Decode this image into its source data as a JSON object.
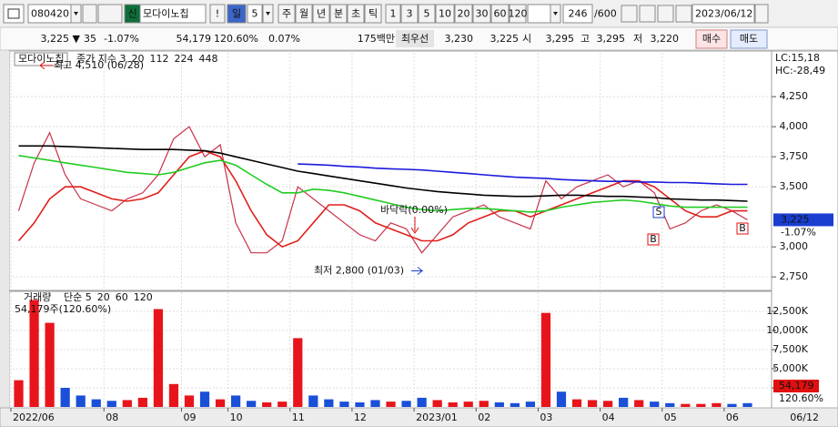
{
  "toolbar": {
    "code": "080420",
    "badge": "신",
    "name": "모다이노칩",
    "alert": "!",
    "period": "일",
    "period_n": "5",
    "periods": [
      "주",
      "월",
      "년",
      "분",
      "초",
      "틱"
    ],
    "intervals": [
      "1",
      "3",
      "5",
      "10",
      "20",
      "30",
      "60",
      "120"
    ],
    "count": "246",
    "max": "/600",
    "date": "2023/06/12"
  },
  "quote": {
    "price": "3,225 ▼",
    "change": "35",
    "change_pct": "-1.07%",
    "volume": "54,179",
    "volume_ratio": "120.60%",
    "turnover": "0.07%",
    "amount": "175백만",
    "best_label": "최우선",
    "ask": "3,230",
    "bid": "3,225",
    "open_label": "시",
    "open": "3,295",
    "high_label": "고",
    "high": "3,295",
    "low_label": "저",
    "low": "3,220",
    "buy": "매수",
    "sell": "매도"
  },
  "chart_data": [
    {
      "type": "line",
      "title": "모다이노칩",
      "series": [
        {
          "name": "종가 지수 3",
          "color": "#c8324a",
          "values": [
            3300,
            3700,
            3950,
            3600,
            3400,
            3350,
            3300,
            3400,
            3450,
            3600,
            3900,
            4000,
            3750,
            3850,
            3200,
            2950,
            2950,
            3050,
            3500,
            3400,
            3300,
            3200,
            3100,
            3050,
            3200,
            3150,
            2950,
            3100,
            3250,
            3300,
            3350,
            3250,
            3200,
            3150,
            3550,
            3400,
            3500,
            3550,
            3600,
            3500,
            3550,
            3450,
            3150,
            3200,
            3300,
            3350,
            3300,
            3225
          ]
        },
        {
          "name": "20",
          "color": "#e0201c",
          "values": [
            3050,
            3200,
            3400,
            3500,
            3500,
            3450,
            3400,
            3380,
            3400,
            3450,
            3600,
            3750,
            3800,
            3750,
            3550,
            3300,
            3100,
            3000,
            3050,
            3200,
            3350,
            3350,
            3300,
            3200,
            3150,
            3100,
            3050,
            3050,
            3100,
            3200,
            3250,
            3300,
            3300,
            3250,
            3300,
            3350,
            3400,
            3450,
            3500,
            3550,
            3550,
            3500,
            3400,
            3300,
            3250,
            3250,
            3300,
            3300
          ]
        },
        {
          "name": "112",
          "color": "#22cc22",
          "values": [
            3760,
            3740,
            3720,
            3700,
            3680,
            3660,
            3640,
            3620,
            3610,
            3600,
            3620,
            3660,
            3700,
            3720,
            3680,
            3600,
            3520,
            3450,
            3450,
            3480,
            3470,
            3450,
            3420,
            3390,
            3360,
            3330,
            3310,
            3300,
            3310,
            3320,
            3320,
            3310,
            3300,
            3290,
            3300,
            3330,
            3350,
            3370,
            3380,
            3390,
            3380,
            3360,
            3340,
            3330,
            3330,
            3330,
            3330,
            3330
          ]
        },
        {
          "name": "224",
          "color": "#000000",
          "values": [
            3840,
            3840,
            3840,
            3835,
            3830,
            3825,
            3820,
            3815,
            3810,
            3810,
            3810,
            3805,
            3800,
            3780,
            3750,
            3720,
            3690,
            3660,
            3630,
            3610,
            3590,
            3570,
            3550,
            3530,
            3510,
            3490,
            3475,
            3460,
            3450,
            3440,
            3430,
            3425,
            3420,
            3420,
            3425,
            3430,
            3430,
            3425,
            3420,
            3420,
            3415,
            3410,
            3400,
            3395,
            3390,
            3390,
            3385,
            3380
          ]
        },
        {
          "name": "448",
          "color": "#1a1adc",
          "values": [
            null,
            null,
            null,
            null,
            null,
            null,
            null,
            null,
            null,
            null,
            null,
            null,
            null,
            null,
            null,
            null,
            null,
            null,
            3690,
            3685,
            3680,
            3670,
            3665,
            3655,
            3650,
            3645,
            3640,
            3630,
            3620,
            3610,
            3600,
            3590,
            3580,
            3575,
            3570,
            3560,
            3555,
            3550,
            3545,
            3545,
            3540,
            3540,
            3535,
            3535,
            3530,
            3525,
            3520,
            3520
          ]
        }
      ],
      "ylim": [
        2645,
        4615
      ],
      "yticks": [
        {
          "value": 2750,
          "label": "2,750"
        },
        {
          "value": 3000,
          "label": "3,000"
        },
        {
          "value": 3500,
          "label": "3,500"
        },
        {
          "value": 3750,
          "label": "3,750"
        },
        {
          "value": 4000,
          "label": "4,000"
        },
        {
          "value": 4250,
          "label": "4,250"
        }
      ],
      "grid": true,
      "corner_labels": [
        "LC:15,18",
        "HC:-28,49"
      ],
      "high": {
        "label": "최고 4,510 (06/28)",
        "value": 4510
      },
      "low": {
        "label": "최저 2,800 (01/03)",
        "value": 2800
      },
      "floor_label": "바닥락(0.00%)",
      "signals": [
        "S",
        "B",
        "B"
      ],
      "last_label": "3,225",
      "last_change": "-1.07%"
    },
    {
      "type": "bar",
      "title": "거래량",
      "categories": [
        "2022/06",
        null,
        null,
        null,
        null,
        null,
        "08",
        null,
        null,
        null,
        null,
        "09",
        null,
        null,
        "10",
        null,
        null,
        null,
        "11",
        null,
        null,
        null,
        "12",
        null,
        null,
        null,
        "2023/01",
        null,
        null,
        null,
        "02",
        null,
        null,
        null,
        "03",
        null,
        null,
        null,
        "04",
        null,
        null,
        null,
        "05",
        null,
        null,
        null,
        "06",
        null
      ],
      "series": [
        {
          "name": "거래량",
          "values": [
            3500,
            14000,
            11000,
            2500,
            1500,
            1000,
            800,
            900,
            1200,
            12800,
            3000,
            1500,
            2000,
            1000,
            1500,
            800,
            600,
            700,
            9000,
            1500,
            1000,
            700,
            600,
            900,
            700,
            800,
            1200,
            900,
            600,
            700,
            800,
            600,
            500,
            700,
            12300,
            2000,
            1000,
            900,
            800,
            1200,
            900,
            700,
            500,
            400,
            400,
            500,
            400,
            500
          ]
        }
      ],
      "up_color": "#e8141c",
      "down_color": "#1a4fd8",
      "legend_items": [
        {
          "name": "단순 5",
          "color": "#b020c0"
        },
        {
          "name": "20",
          "color": "#e09000"
        },
        {
          "name": "60",
          "color": "#108010"
        },
        {
          "name": "120",
          "color": "#808080"
        }
      ],
      "current": "54,179주(120.60%)",
      "last_label": "54,179",
      "last_ratio": "120.60%",
      "ylim": [
        0,
        15000
      ],
      "yticks": [
        {
          "value": 2500,
          "label": "2,500K"
        },
        {
          "value": 5000,
          "label": "5,000K"
        },
        {
          "value": 7500,
          "label": "7,500K"
        },
        {
          "value": 10000,
          "label": "10,000K"
        },
        {
          "value": 12500,
          "label": "12,500K"
        }
      ],
      "grid": true,
      "end_date": "06/12"
    }
  ]
}
